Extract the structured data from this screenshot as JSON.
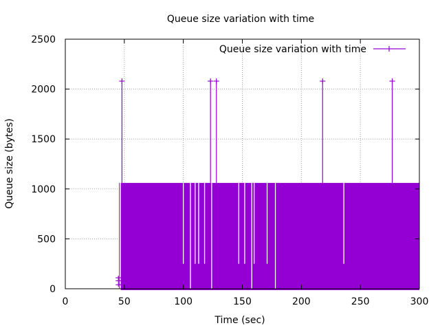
{
  "chart_data": {
    "type": "line",
    "title": "Queue size variation with time",
    "xlabel": "Time (sec)",
    "ylabel": "Queue size (bytes)",
    "xlim": [
      0,
      300
    ],
    "ylim": [
      0,
      2500
    ],
    "xticks": [
      0,
      50,
      100,
      150,
      200,
      250,
      300
    ],
    "yticks": [
      0,
      500,
      1000,
      1500,
      2000,
      2500
    ],
    "grid": true,
    "legend": {
      "position": "top-right",
      "label": "Queue size variation with time"
    },
    "series": [
      {
        "name": "Queue size variation with time",
        "color": "#9400d3",
        "band": {
          "x_start": 47,
          "x_end": 300,
          "y_low": 0,
          "y_high": 1060
        },
        "early_points": [
          {
            "x": 45,
            "y": 40
          },
          {
            "x": 45,
            "y": 80
          },
          {
            "x": 45,
            "y": 110
          }
        ],
        "peaks": [
          {
            "x": 48,
            "y": 2080
          },
          {
            "x": 123,
            "y": 2080
          },
          {
            "x": 128,
            "y": 2080
          },
          {
            "x": 218,
            "y": 2080
          },
          {
            "x": 277,
            "y": 2080
          }
        ],
        "gaps": [
          {
            "x": 100,
            "y_from": 250,
            "y_to": 1060
          },
          {
            "x": 106,
            "y_from": 0,
            "y_to": 1060
          },
          {
            "x": 110,
            "y_from": 250,
            "y_to": 1060
          },
          {
            "x": 113,
            "y_from": 250,
            "y_to": 1060
          },
          {
            "x": 118,
            "y_from": 250,
            "y_to": 1060
          },
          {
            "x": 124,
            "y_from": 0,
            "y_to": 1060
          },
          {
            "x": 147,
            "y_from": 250,
            "y_to": 1060
          },
          {
            "x": 152,
            "y_from": 250,
            "y_to": 1060
          },
          {
            "x": 158,
            "y_from": 0,
            "y_to": 1060
          },
          {
            "x": 160,
            "y_from": 250,
            "y_to": 1060
          },
          {
            "x": 171,
            "y_from": 250,
            "y_to": 1060
          },
          {
            "x": 178,
            "y_from": 0,
            "y_to": 1060
          },
          {
            "x": 236,
            "y_from": 250,
            "y_to": 1060
          }
        ]
      }
    ]
  }
}
